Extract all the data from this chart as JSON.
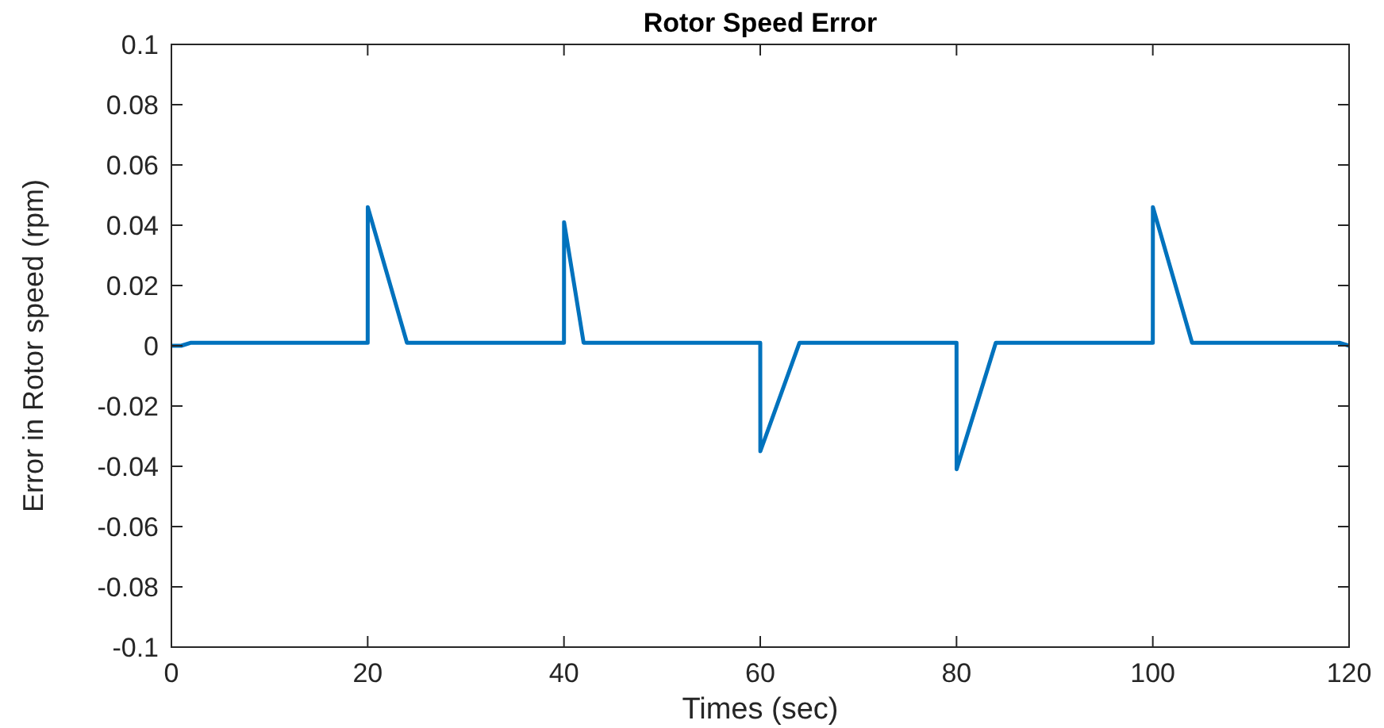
{
  "chart_data": {
    "type": "line",
    "title": "Rotor Speed Error",
    "xlabel": "Times (sec)",
    "ylabel": "Error in Rotor speed (rpm)",
    "x": [
      0,
      1,
      2,
      20,
      20.01,
      24,
      40,
      40.01,
      42,
      60,
      60.01,
      64,
      80,
      80.01,
      84,
      100,
      100.01,
      104,
      119,
      120
    ],
    "series": [
      {
        "color": "#0072bd",
        "values": [
          0,
          0,
          0.001,
          0.001,
          0.046,
          0.001,
          0.001,
          0.041,
          0.001,
          0.001,
          -0.035,
          0.001,
          0.001,
          -0.041,
          0.001,
          0.001,
          0.046,
          0.001,
          0.001,
          0
        ]
      }
    ],
    "xlim": [
      0,
      120
    ],
    "xticks": [
      0,
      20,
      40,
      60,
      80,
      100,
      120
    ],
    "ylim": [
      -0.1,
      0.1
    ],
    "yticks": [
      -0.1,
      -0.08,
      -0.06,
      -0.04,
      -0.02,
      0,
      0.02,
      0.04,
      0.06,
      0.08,
      0.1
    ],
    "grid": false,
    "marker": "none",
    "line_style": "solid"
  }
}
